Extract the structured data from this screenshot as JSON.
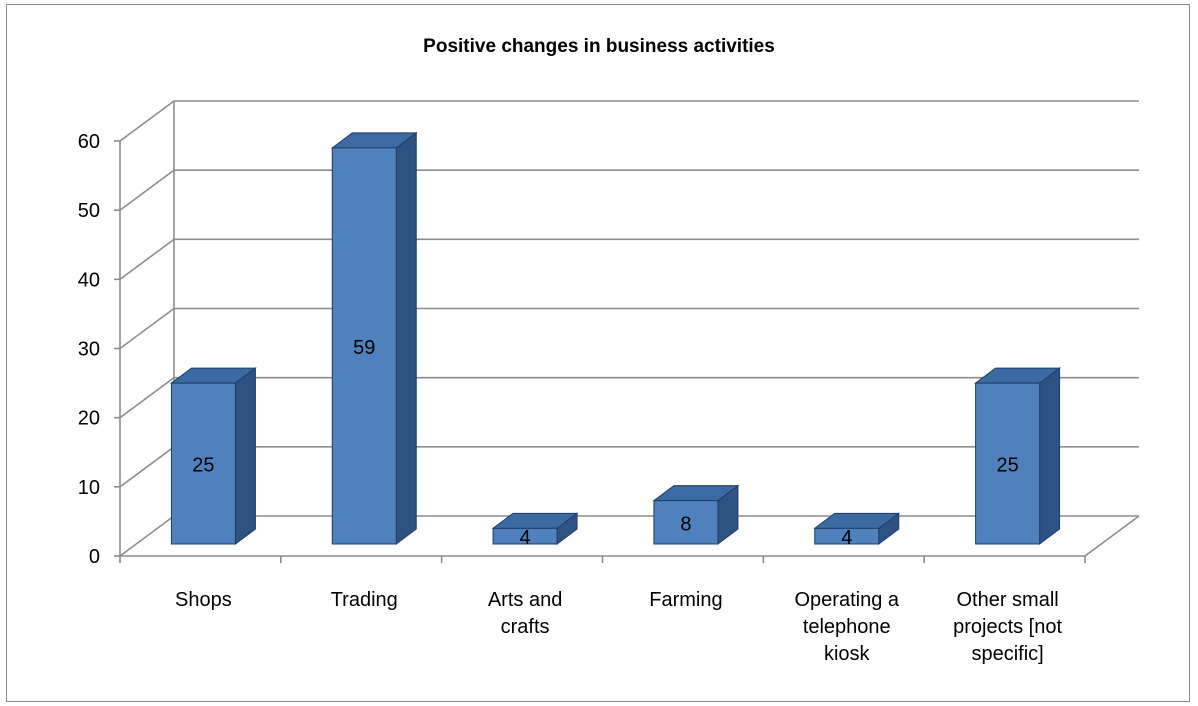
{
  "chart_data": {
    "type": "bar",
    "title": "Positive changes in business activities",
    "categories": [
      [
        "Shops"
      ],
      [
        "Trading"
      ],
      [
        "Arts and",
        "crafts"
      ],
      [
        "Farming"
      ],
      [
        "Operating a",
        "telephone",
        "kiosk"
      ],
      [
        "Other small",
        "projects [not",
        "specific]"
      ]
    ],
    "values": [
      25,
      59,
      4,
      8,
      4,
      25
    ],
    "data_labels": [
      "25",
      "59",
      "4",
      "8",
      "4",
      "25"
    ],
    "ylim": [
      0,
      60
    ],
    "yticks": [
      "0",
      "10",
      "20",
      "30",
      "40",
      "50",
      "60"
    ],
    "grid": true,
    "bar_style": "3d-column",
    "colors": {
      "bar_front": "#4f81bd",
      "bar_side": "#2e5282",
      "bar_top": "#3c6aa3",
      "bar_outline": "#1f3f68",
      "grid": "#8c8c8c"
    }
  }
}
